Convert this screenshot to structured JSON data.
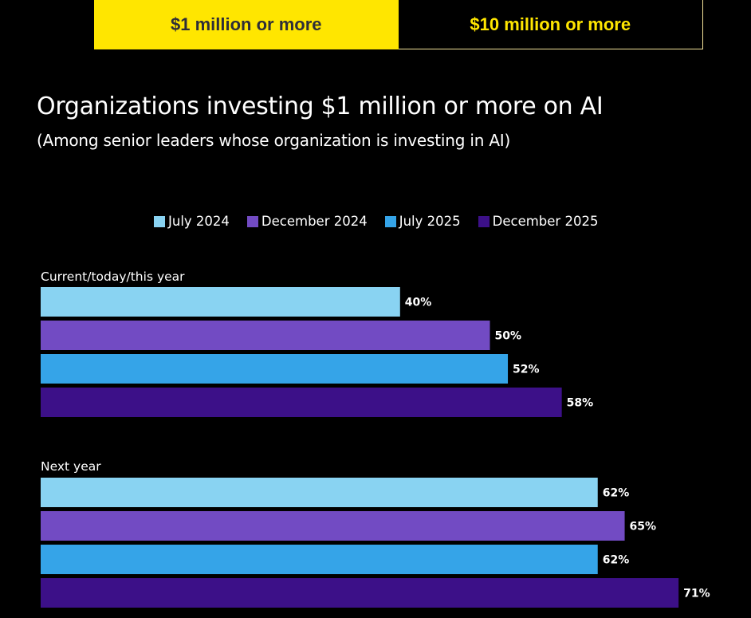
{
  "tabs": [
    {
      "label": "$1 million or more",
      "active": true
    },
    {
      "label": "$10 million or more",
      "active": false
    }
  ],
  "colors": {
    "accent": "#ffe600",
    "background": "#000000"
  },
  "chart_data": {
    "type": "bar",
    "orientation": "horizontal",
    "title": "Organizations investing $1 million or more on AI",
    "subtitle": "(Among senior leaders whose organization is investing in AI)",
    "xlabel": "",
    "ylabel": "",
    "xlim": [
      0,
      100
    ],
    "grid": false,
    "legend_position": "top-center",
    "categories": [
      "Current/today/this year",
      "Next year"
    ],
    "series": [
      {
        "name": "July 2024",
        "color": "#89d3f2",
        "values": [
          40,
          62
        ]
      },
      {
        "name": "December 2024",
        "color": "#724bc3",
        "values": [
          50,
          65
        ]
      },
      {
        "name": "July 2025",
        "color": "#35a4e8",
        "values": [
          52,
          62
        ]
      },
      {
        "name": "December 2025",
        "color": "#3c1088",
        "values": [
          58,
          71
        ]
      }
    ],
    "value_suffix": "%"
  }
}
